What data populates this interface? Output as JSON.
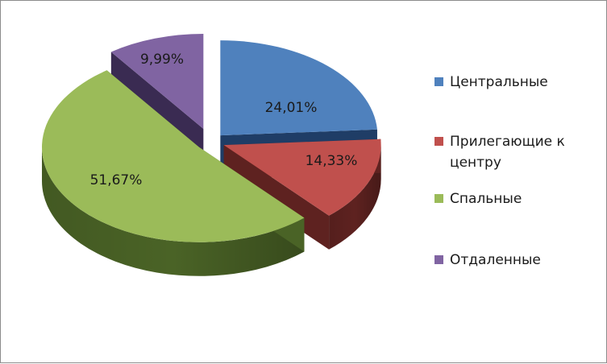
{
  "chart_data": {
    "type": "pie",
    "style": "3d-exploded",
    "categories": [
      "Центральные",
      "Прилегающие к центру",
      "Спальные",
      "Отдаленные"
    ],
    "values": [
      24.01,
      14.33,
      51.67,
      9.99
    ],
    "data_labels": [
      "24,01%",
      "14,33%",
      "51,67%",
      "9,99%"
    ],
    "colors": [
      "#4f81bd",
      "#c0504d",
      "#9bbb59",
      "#8064a2"
    ],
    "side_colors": [
      "#1f3d66",
      "#5e2220",
      "#4a6326",
      "#3a2b52"
    ],
    "legend_position": "right"
  },
  "legend": {
    "items": [
      {
        "label": "Центральные",
        "color": "#4f81bd"
      },
      {
        "label": "Прилегающие к центру",
        "color": "#c0504d"
      },
      {
        "label": "Спальные",
        "color": "#9bbb59"
      },
      {
        "label": "Отдаленные",
        "color": "#8064a2"
      }
    ]
  }
}
